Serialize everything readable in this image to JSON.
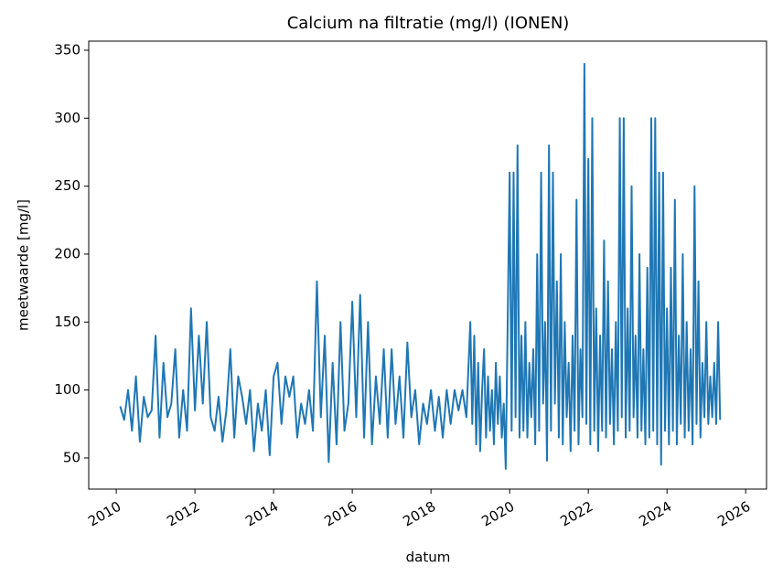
{
  "chart_data": {
    "type": "line",
    "title": "Calcium na filtratie (mg/l) (IONEN)",
    "xlabel": "datum",
    "ylabel": "meetwaarde [mg/l]",
    "xlim": [
      2009.3,
      2026.53
    ],
    "xticks": [
      2010,
      2012,
      2014,
      2016,
      2018,
      2020,
      2022,
      2024,
      2026
    ],
    "ylim": [
      27.1,
      356.7
    ],
    "yticks": [
      50,
      100,
      150,
      200,
      250,
      300,
      350
    ],
    "grid": false,
    "x": [
      2010.1,
      2010.2,
      2010.3,
      2010.4,
      2010.5,
      2010.6,
      2010.7,
      2010.8,
      2010.9,
      2011.0,
      2011.1,
      2011.2,
      2011.3,
      2011.4,
      2011.5,
      2011.6,
      2011.7,
      2011.8,
      2011.9,
      2012.0,
      2012.1,
      2012.2,
      2012.3,
      2012.4,
      2012.5,
      2012.6,
      2012.7,
      2012.8,
      2012.9,
      2013.0,
      2013.1,
      2013.2,
      2013.3,
      2013.4,
      2013.5,
      2013.6,
      2013.7,
      2013.8,
      2013.9,
      2014.0,
      2014.1,
      2014.2,
      2014.3,
      2014.4,
      2014.5,
      2014.6,
      2014.7,
      2014.8,
      2014.9,
      2015.0,
      2015.1,
      2015.2,
      2015.3,
      2015.4,
      2015.5,
      2015.6,
      2015.7,
      2015.8,
      2015.9,
      2016.0,
      2016.1,
      2016.2,
      2016.3,
      2016.4,
      2016.5,
      2016.6,
      2016.7,
      2016.8,
      2016.9,
      2017.0,
      2017.1,
      2017.2,
      2017.3,
      2017.4,
      2017.5,
      2017.6,
      2017.7,
      2017.8,
      2017.9,
      2018.0,
      2018.1,
      2018.2,
      2018.3,
      2018.4,
      2018.5,
      2018.6,
      2018.7,
      2018.8,
      2018.9,
      2019.0,
      2019.05,
      2019.1,
      2019.15,
      2019.2,
      2019.25,
      2019.3,
      2019.35,
      2019.4,
      2019.45,
      2019.5,
      2019.55,
      2019.6,
      2019.65,
      2019.7,
      2019.75,
      2019.8,
      2019.85,
      2019.9,
      2019.95,
      2020.0,
      2020.05,
      2020.1,
      2020.15,
      2020.2,
      2020.25,
      2020.3,
      2020.35,
      2020.4,
      2020.45,
      2020.5,
      2020.55,
      2020.6,
      2020.65,
      2020.7,
      2020.75,
      2020.8,
      2020.85,
      2020.9,
      2020.95,
      2021.0,
      2021.05,
      2021.1,
      2021.15,
      2021.2,
      2021.25,
      2021.3,
      2021.35,
      2021.4,
      2021.45,
      2021.5,
      2021.55,
      2021.6,
      2021.65,
      2021.7,
      2021.75,
      2021.8,
      2021.85,
      2021.9,
      2021.95,
      2022.0,
      2022.05,
      2022.1,
      2022.15,
      2022.2,
      2022.25,
      2022.3,
      2022.35,
      2022.4,
      2022.45,
      2022.5,
      2022.55,
      2022.6,
      2022.65,
      2022.7,
      2022.75,
      2022.8,
      2022.85,
      2022.9,
      2022.95,
      2023.0,
      2023.05,
      2023.1,
      2023.15,
      2023.2,
      2023.25,
      2023.3,
      2023.35,
      2023.4,
      2023.45,
      2023.5,
      2023.55,
      2023.6,
      2023.65,
      2023.7,
      2023.75,
      2023.8,
      2023.85,
      2023.9,
      2023.95,
      2024.0,
      2024.05,
      2024.1,
      2024.15,
      2024.2,
      2024.25,
      2024.3,
      2024.35,
      2024.4,
      2024.45,
      2024.5,
      2024.55,
      2024.6,
      2024.65,
      2024.7,
      2024.75,
      2024.8,
      2024.85,
      2024.9,
      2024.95,
      2025.0,
      2025.05,
      2025.1,
      2025.15,
      2025.2,
      2025.25,
      2025.3,
      2025.35
    ],
    "series": [
      {
        "name": "meetwaarde",
        "color": "#1f77b4",
        "values": [
          88,
          78,
          100,
          70,
          110,
          62,
          95,
          80,
          85,
          140,
          65,
          120,
          80,
          90,
          130,
          65,
          100,
          70,
          160,
          85,
          140,
          90,
          150,
          80,
          70,
          95,
          62,
          85,
          130,
          65,
          110,
          95,
          75,
          100,
          55,
          90,
          70,
          100,
          52,
          110,
          120,
          75,
          110,
          95,
          110,
          65,
          90,
          75,
          100,
          70,
          180,
          80,
          140,
          47,
          120,
          60,
          150,
          70,
          90,
          165,
          80,
          170,
          65,
          150,
          60,
          110,
          75,
          130,
          65,
          130,
          75,
          110,
          65,
          135,
          80,
          100,
          60,
          90,
          75,
          100,
          70,
          95,
          65,
          100,
          75,
          100,
          85,
          100,
          80,
          150,
          75,
          140,
          60,
          120,
          55,
          100,
          130,
          65,
          110,
          70,
          100,
          60,
          120,
          75,
          110,
          65,
          90,
          42,
          150,
          260,
          70,
          260,
          80,
          280,
          65,
          140,
          70,
          150,
          65,
          120,
          80,
          130,
          60,
          200,
          70,
          260,
          90,
          150,
          48,
          280,
          70,
          260,
          90,
          180,
          65,
          200,
          60,
          150,
          80,
          120,
          55,
          140,
          70,
          240,
          60,
          130,
          80,
          340,
          75,
          270,
          60,
          300,
          70,
          160,
          55,
          140,
          70,
          210,
          65,
          180,
          75,
          130,
          60,
          150,
          70,
          300,
          80,
          300,
          65,
          160,
          70,
          250,
          80,
          140,
          65,
          200,
          70,
          130,
          60,
          190,
          65,
          300,
          70,
          300,
          60,
          260,
          45,
          260,
          70,
          160,
          60,
          190,
          70,
          240,
          60,
          140,
          75,
          200,
          65,
          150,
          70,
          130,
          60,
          250,
          75,
          180,
          65,
          120,
          80,
          150,
          75,
          110,
          80,
          120,
          75,
          150,
          78
        ]
      }
    ]
  }
}
